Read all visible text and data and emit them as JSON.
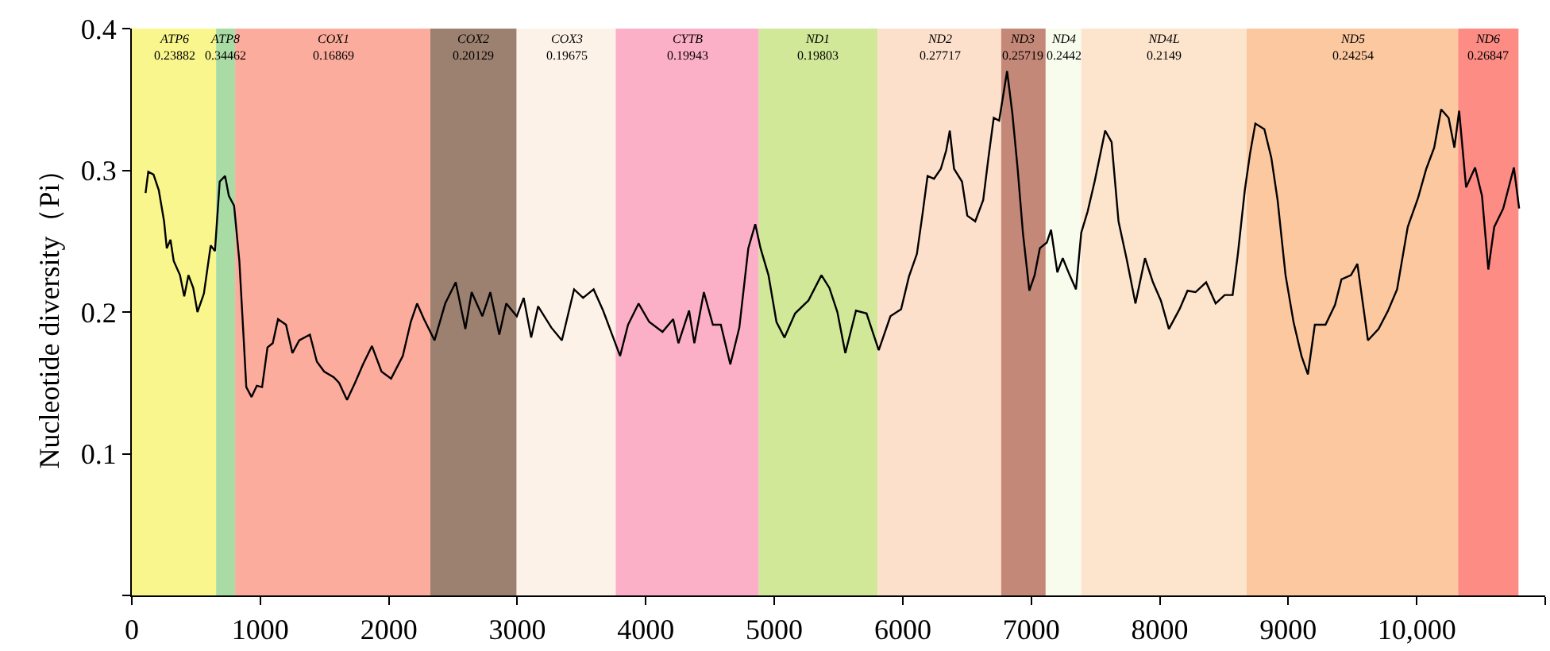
{
  "chart_data": {
    "type": "line",
    "ylabel": "Nucleotide diversity（Pi）",
    "xlim": [
      0,
      11000
    ],
    "xticks": [
      {
        "value": 0,
        "label": "0"
      },
      {
        "value": 1000,
        "label": "1000"
      },
      {
        "value": 2000,
        "label": "2000"
      },
      {
        "value": 3000,
        "label": "3000"
      },
      {
        "value": 4000,
        "label": "4000"
      },
      {
        "value": 5000,
        "label": "5000"
      },
      {
        "value": 6000,
        "label": "6000"
      },
      {
        "value": 7000,
        "label": "7000"
      },
      {
        "value": 8000,
        "label": "8000"
      },
      {
        "value": 9000,
        "label": "9000"
      },
      {
        "value": 10000,
        "label": "10,000"
      },
      {
        "value": 11000,
        "label": null
      }
    ],
    "ylim": [
      0,
      0.4
    ],
    "yticks": [
      {
        "value": 0,
        "label": null
      },
      0.1,
      0.2,
      0.3,
      0.4
    ],
    "grid": false,
    "marker": "none",
    "line_style": "solid",
    "series": [
      {
        "color": "#000000",
        "x": [
          107,
          128,
          169,
          210,
          251,
          272,
          301,
          326,
          375,
          408,
          441,
          478,
          511,
          561,
          614,
          647,
          684,
          726,
          755,
          796,
          837,
          870,
          891,
          932,
          973,
          1014,
          1056,
          1097,
          1138,
          1200,
          1250,
          1303,
          1386,
          1440,
          1497,
          1572,
          1613,
          1675,
          1737,
          1799,
          1869,
          1943,
          2018,
          2109,
          2171,
          2220,
          2274,
          2356,
          2439,
          2521,
          2596,
          2645,
          2728,
          2790,
          2860,
          2914,
          2996,
          3050,
          3108,
          3162,
          3265,
          3347,
          3442,
          3512,
          3594,
          3668,
          3738,
          3800,
          3862,
          3944,
          4027,
          4130,
          4213,
          4254,
          4337,
          4378,
          4452,
          4522,
          4584,
          4658,
          4728,
          4798,
          4852,
          4893,
          4955,
          5017,
          5079,
          5162,
          5265,
          5367,
          5429,
          5491,
          5553,
          5636,
          5718,
          5813,
          5904,
          5987,
          6048,
          6110,
          6152,
          6193,
          6243,
          6296,
          6338,
          6366,
          6399,
          6461,
          6502,
          6564,
          6626,
          6667,
          6708,
          6750,
          6812,
          6853,
          6894,
          6935,
          6985,
          7026,
          7067,
          7121,
          7154,
          7203,
          7245,
          7299,
          7348,
          7389,
          7439,
          7493,
          7534,
          7575,
          7625,
          7679,
          7741,
          7811,
          7885,
          7947,
          8009,
          8071,
          8154,
          8216,
          8278,
          8361,
          8435,
          8505,
          8567,
          8608,
          8662,
          8703,
          8744,
          8814,
          8868,
          8917,
          8979,
          9041,
          9103,
          9153,
          9207,
          9290,
          9364,
          9414,
          9488,
          9538,
          9620,
          9703,
          9777,
          9847,
          9930,
          10012,
          10074,
          10136,
          10190,
          10248,
          10293,
          10330,
          10384,
          10454,
          10508,
          10557,
          10603,
          10673,
          10756,
          10797
        ],
        "values": [
          0.284,
          0.299,
          0.297,
          0.286,
          0.264,
          0.245,
          0.251,
          0.236,
          0.226,
          0.211,
          0.226,
          0.217,
          0.2,
          0.213,
          0.247,
          0.243,
          0.292,
          0.296,
          0.282,
          0.275,
          0.236,
          0.182,
          0.147,
          0.14,
          0.148,
          0.147,
          0.175,
          0.178,
          0.195,
          0.191,
          0.171,
          0.18,
          0.184,
          0.165,
          0.158,
          0.154,
          0.15,
          0.138,
          0.15,
          0.163,
          0.176,
          0.158,
          0.153,
          0.169,
          0.193,
          0.206,
          0.195,
          0.18,
          0.206,
          0.221,
          0.188,
          0.214,
          0.197,
          0.214,
          0.184,
          0.206,
          0.197,
          0.21,
          0.182,
          0.204,
          0.189,
          0.18,
          0.216,
          0.21,
          0.216,
          0.201,
          0.184,
          0.169,
          0.191,
          0.206,
          0.193,
          0.186,
          0.195,
          0.178,
          0.201,
          0.178,
          0.214,
          0.191,
          0.191,
          0.163,
          0.189,
          0.245,
          0.262,
          0.245,
          0.226,
          0.193,
          0.182,
          0.199,
          0.208,
          0.226,
          0.217,
          0.2,
          0.171,
          0.201,
          0.199,
          0.173,
          0.197,
          0.202,
          0.225,
          0.241,
          0.268,
          0.296,
          0.294,
          0.301,
          0.314,
          0.328,
          0.301,
          0.292,
          0.268,
          0.264,
          0.279,
          0.309,
          0.337,
          0.335,
          0.37,
          0.34,
          0.301,
          0.256,
          0.215,
          0.226,
          0.245,
          0.249,
          0.258,
          0.228,
          0.238,
          0.226,
          0.216,
          0.256,
          0.271,
          0.292,
          0.31,
          0.328,
          0.32,
          0.264,
          0.238,
          0.206,
          0.238,
          0.221,
          0.208,
          0.188,
          0.202,
          0.215,
          0.214,
          0.221,
          0.206,
          0.212,
          0.212,
          0.241,
          0.286,
          0.312,
          0.333,
          0.329,
          0.309,
          0.279,
          0.226,
          0.193,
          0.169,
          0.156,
          0.191,
          0.191,
          0.205,
          0.223,
          0.226,
          0.234,
          0.18,
          0.188,
          0.201,
          0.216,
          0.26,
          0.281,
          0.301,
          0.316,
          0.343,
          0.337,
          0.316,
          0.342,
          0.288,
          0.302,
          0.282,
          0.23,
          0.26,
          0.273,
          0.302,
          0.273
        ]
      }
    ],
    "bands": [
      {
        "axis": "x",
        "from": 0,
        "to": 656,
        "label": "ATP6\n0.23882",
        "color": "#f8f68c"
      },
      {
        "axis": "x",
        "from": 656,
        "to": 804,
        "label": "ATP8\n0.34462",
        "color": "#a8dca4"
      },
      {
        "axis": "x",
        "from": 804,
        "to": 2323,
        "label": "COX1\n0.16869",
        "color": "#fcac9c"
      },
      {
        "axis": "x",
        "from": 2323,
        "to": 2995,
        "label": "COX2\n0.20129",
        "color": "#9c8070"
      },
      {
        "axis": "x",
        "from": 2995,
        "to": 3766,
        "label": "COX3\n0.19675",
        "color": "#fdf2e8"
      },
      {
        "axis": "x",
        "from": 3766,
        "to": 4880,
        "label": "CYTB\n0.19943",
        "color": "#fcb0c8"
      },
      {
        "axis": "x",
        "from": 4880,
        "to": 5804,
        "label": "ND1\n0.19803",
        "color": "#d0e898"
      },
      {
        "axis": "x",
        "from": 5804,
        "to": 6766,
        "label": "ND2\n0.27717",
        "color": "#fde0cc"
      },
      {
        "axis": "x",
        "from": 6766,
        "to": 7112,
        "label": "ND3\n0.25719",
        "color": "#c48878"
      },
      {
        "axis": "x",
        "from": 7112,
        "to": 7389,
        "label": "ND4\n0.2442",
        "color": "#f8fcec"
      },
      {
        "axis": "x",
        "from": 7389,
        "to": 8676,
        "label": "ND4L\n0.2149",
        "color": "#fde4cc"
      },
      {
        "axis": "x",
        "from": 8676,
        "to": 10322,
        "label": "ND5\n0.24254",
        "color": "#fcc8a0"
      },
      {
        "axis": "x",
        "from": 10322,
        "to": 10792,
        "label": "ND6\n0.26847",
        "color": "#fc8c84"
      }
    ]
  }
}
